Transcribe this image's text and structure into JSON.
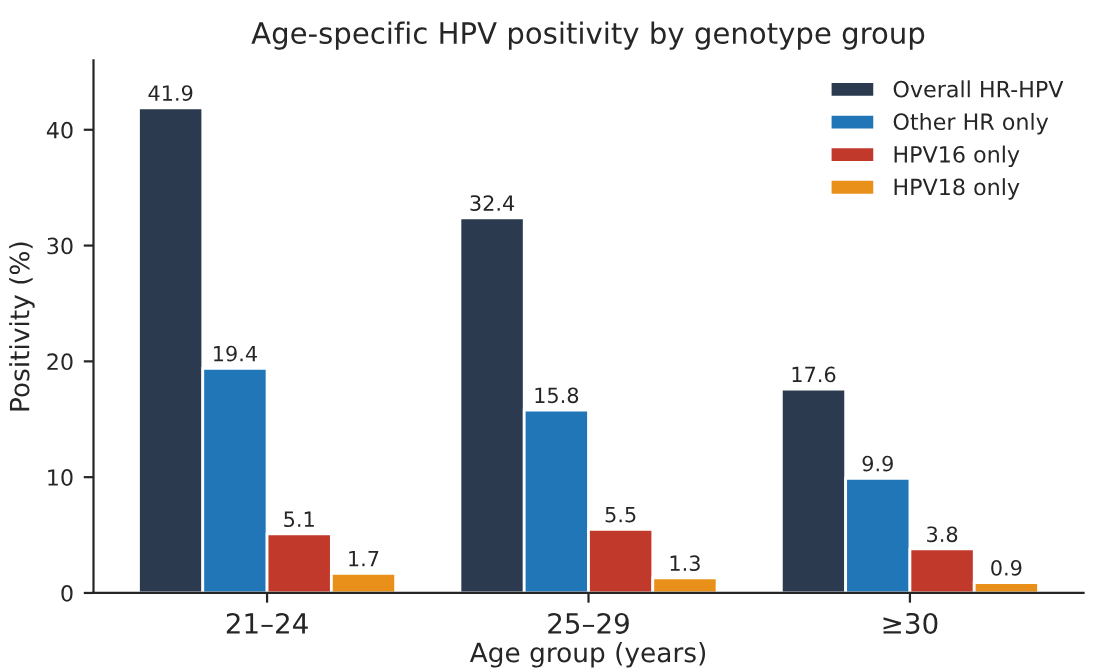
{
  "chart_data": {
    "type": "bar",
    "title": "Age-specific HPV positivity by genotype group",
    "xlabel": "Age group (years)",
    "ylabel": "Positivity (%)",
    "categories": [
      "21–24",
      "25–29",
      "≥30"
    ],
    "series": [
      {
        "name": "Overall HR-HPV",
        "color": "#2b3a4e",
        "values": [
          41.9,
          32.4,
          17.6
        ]
      },
      {
        "name": "Other HR only",
        "color": "#2176b8",
        "values": [
          19.4,
          15.8,
          9.9
        ]
      },
      {
        "name": "HPV16 only",
        "color": "#c0392b",
        "values": [
          5.1,
          5.5,
          3.8
        ]
      },
      {
        "name": "HPV18 only",
        "color": "#e8901a",
        "values": [
          1.7,
          1.3,
          0.9
        ]
      }
    ],
    "ylim": [
      0,
      46
    ],
    "yticks": [
      0,
      10,
      20,
      30,
      40
    ],
    "data_labels": true,
    "legend": "top right",
    "grid": false
  }
}
